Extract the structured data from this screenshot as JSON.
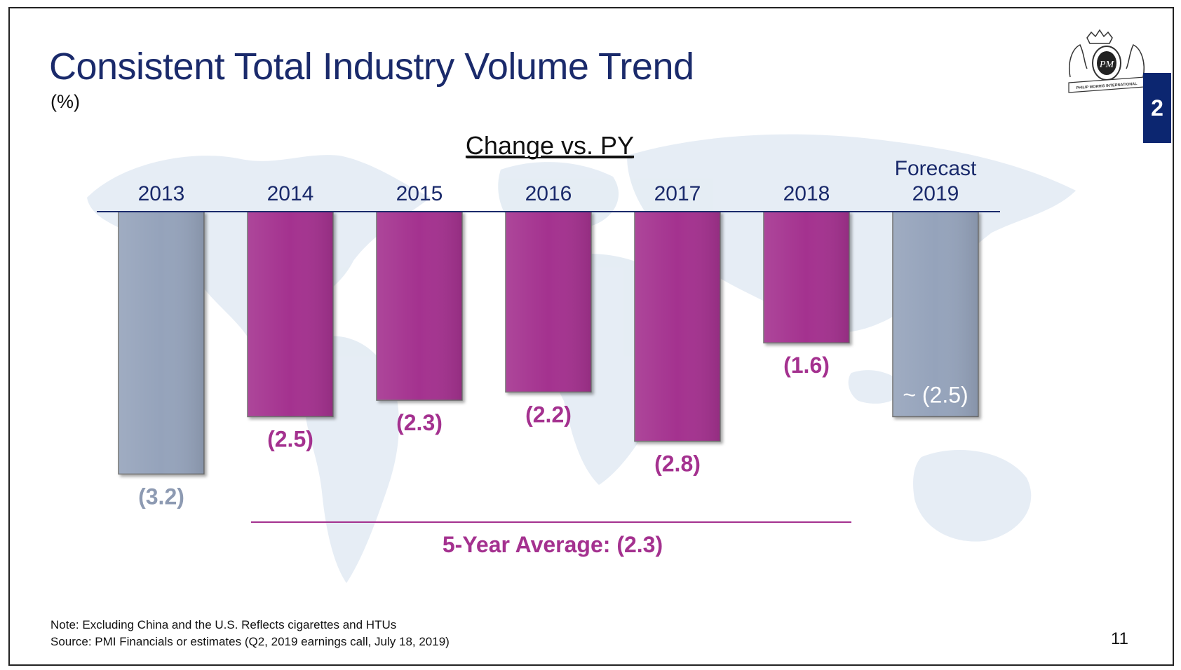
{
  "header": {
    "title": "Consistent Total Industry Volume Trend",
    "subtitle": "(%)",
    "section_tab": "2"
  },
  "footer": {
    "note": "Note: Excluding China and the U.S. Reflects cigarettes and HTUs",
    "source": "Source: PMI Financials or estimates (Q2, 2019 earnings call, July 18, 2019)",
    "page_number": "11"
  },
  "logo": {
    "text_top": "PM",
    "text_banner": "PHILIP MORRIS INTERNATIONAL"
  },
  "chart_data": {
    "type": "bar",
    "title": "Change vs. PY",
    "categories": [
      "2013",
      "2014",
      "2015",
      "2016",
      "2017",
      "2018",
      "Forecast 2019"
    ],
    "values": [
      -3.2,
      -2.5,
      -2.3,
      -2.2,
      -2.8,
      -1.6,
      -2.5
    ],
    "value_labels": [
      "(3.2)",
      "(2.5)",
      "(2.3)",
      "(2.2)",
      "(2.8)",
      "(1.6)",
      "~ (2.5)"
    ],
    "bar_colors": [
      "#95a3bb",
      "#a4318f",
      "#a4318f",
      "#a4318f",
      "#a4318f",
      "#a4318f",
      "#95a3bb"
    ],
    "label_colors": [
      "#8d9ab2",
      "#a4318f",
      "#a4318f",
      "#a4318f",
      "#a4318f",
      "#a4318f",
      "#ffffff"
    ],
    "category_color": "#1a2a6b",
    "annotation": "5-Year Average: (2.3)",
    "annotation_color": "#a4318f",
    "ylim": [
      -3.2,
      0
    ],
    "grid": false
  }
}
